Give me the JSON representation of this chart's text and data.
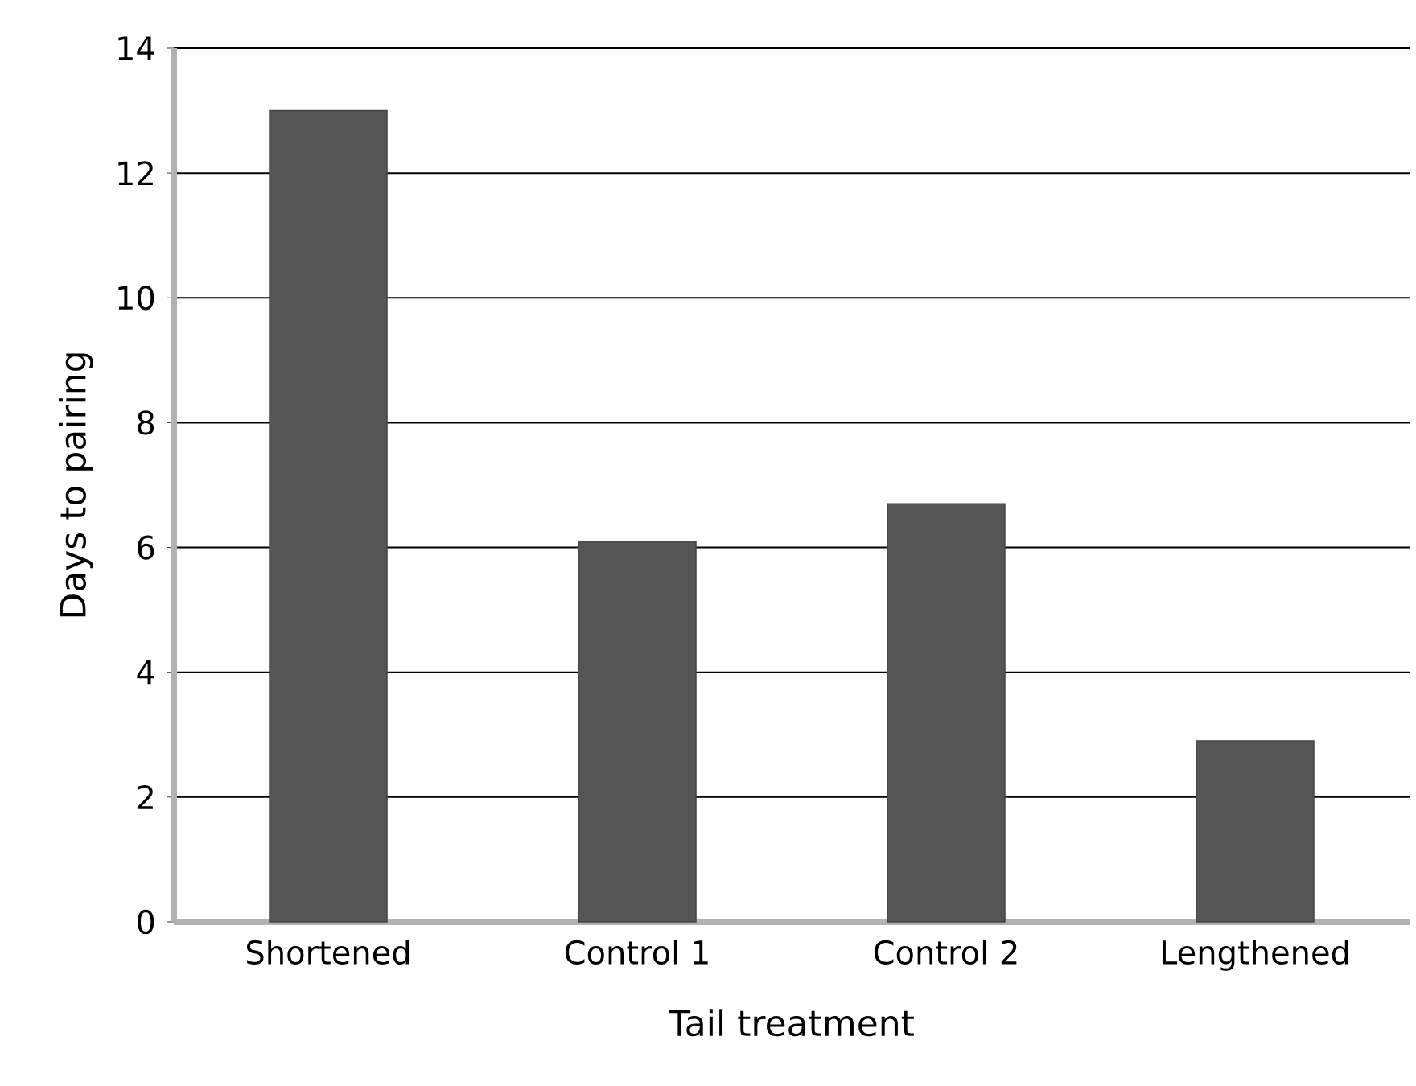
{
  "chart_data": {
    "type": "bar",
    "xlabel": "Tail treatment",
    "ylabel": "Days to pairing",
    "categories": [
      "Shortened",
      "Control 1",
      "Control 2",
      "Lengthened"
    ],
    "values": [
      13,
      6.1,
      6.7,
      2.9
    ],
    "color": "#555555",
    "ylim": [
      0,
      14
    ],
    "yticks": [
      0,
      2,
      4,
      6,
      8,
      10,
      12,
      14
    ],
    "grid": "y"
  }
}
